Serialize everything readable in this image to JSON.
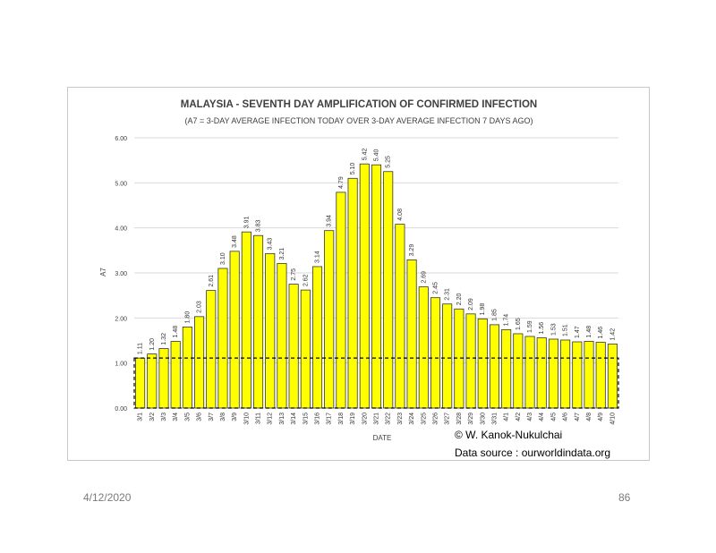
{
  "slide": {
    "date": "4/12/2020",
    "page_number": "86"
  },
  "chart_data": {
    "type": "bar",
    "title": "MALAYSIA  - SEVENTH DAY AMPLIFICATION OF CONFIRMED INFECTION",
    "subtitle": "(A7 = 3-DAY AVERAGE INFECTION TODAY OVER 3-DAY AVERAGE INFECTION 7 DAYS AGO)",
    "xlabel": "DATE",
    "ylabel": "A7",
    "ylim": [
      0,
      6
    ],
    "yticks": [
      "0.00",
      "1.00",
      "2.00",
      "3.00",
      "4.00",
      "5.00",
      "6.00"
    ],
    "grid": true,
    "categories": [
      "3/1",
      "3/2",
      "3/3",
      "3/4",
      "3/5",
      "3/6",
      "3/7",
      "3/8",
      "3/9",
      "3/10",
      "3/11",
      "3/12",
      "3/13",
      "3/14",
      "3/15",
      "3/16",
      "3/17",
      "3/18",
      "3/19",
      "3/20",
      "3/21",
      "3/22",
      "3/23",
      "3/24",
      "3/25",
      "3/26",
      "3/27",
      "3/28",
      "3/29",
      "3/30",
      "3/31",
      "4/1",
      "4/2",
      "4/3",
      "4/4",
      "4/5",
      "4/6",
      "4/7",
      "4/8",
      "4/9",
      "4/10"
    ],
    "values": [
      1.11,
      1.2,
      1.32,
      1.48,
      1.8,
      2.03,
      2.61,
      3.1,
      3.48,
      3.91,
      3.83,
      3.43,
      3.21,
      2.75,
      2.62,
      3.14,
      3.94,
      4.79,
      5.1,
      5.42,
      5.4,
      5.25,
      4.08,
      3.29,
      2.69,
      2.45,
      2.31,
      2.2,
      2.09,
      1.98,
      1.85,
      1.74,
      1.65,
      1.59,
      1.56,
      1.53,
      1.51,
      1.47,
      1.48,
      1.46,
      1.42
    ],
    "value_labels": [
      "1.11",
      "1.20",
      "1.32",
      "1.48",
      "1.80",
      "2.03",
      "2.61",
      "3.10",
      "3.48",
      "3.91",
      "3.83",
      "3.43",
      "3.21",
      "2.75",
      "2.62",
      "3.14",
      "3.94",
      "4.79",
      "5.10",
      "5.42",
      "5.40",
      "5.25",
      "4.08",
      "3.29",
      "2.69",
      "2.45",
      "2.31",
      "2.20",
      "2.09",
      "1.98",
      "1.85",
      "1.74",
      "1.65",
      "1.59",
      "1.56",
      "1.53",
      "1.51",
      "1.47",
      "1.48",
      "1.46",
      "1.42"
    ],
    "reference_box_value": 1.11,
    "bar_color": "#ffff00",
    "bar_edge_color": "#333333",
    "grid_color": "#d9d9d9",
    "annotations": [
      "© W. Kanok-Nukulchai",
      "Data source : ourworldindata.org"
    ]
  }
}
